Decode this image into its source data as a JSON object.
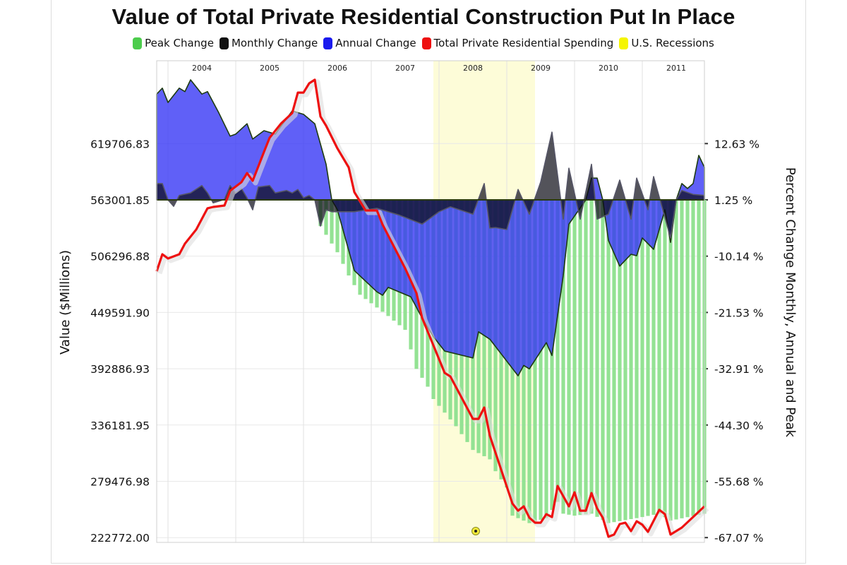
{
  "chart_data": {
    "type": "line",
    "title": "Value of Total Private Residential Construction Put In Place",
    "legend": [
      {
        "name": "Peak Change",
        "color": "#4ccc4c"
      },
      {
        "name": "Monthly Change",
        "color": "#111111"
      },
      {
        "name": "Annual Change",
        "color": "#2222ee"
      },
      {
        "name": "Total Private Residential Spending",
        "color": "#ee1111"
      },
      {
        "name": "U.S. Recessions",
        "color": "#f5f500"
      }
    ],
    "legend_position": "top",
    "ylabel_left": "Value ($Millions)",
    "ylabel_right": "Percent Change Monthly, Annual and Peak",
    "x_range": [
      "2003-11",
      "2011-12"
    ],
    "year_labels": [
      "2004",
      "2005",
      "2006",
      "2007",
      "2008",
      "2009",
      "2010",
      "2011"
    ],
    "left_ticks": [
      "222772.00",
      "279476.98",
      "336181.95",
      "392886.93",
      "449591.90",
      "506296.88",
      "563001.85",
      "619706.83"
    ],
    "right_ticks": [
      "-67.07 %",
      "-55.68 %",
      "-44.30 %",
      "-32.91 %",
      "-21.53 %",
      "-10.14 %",
      "1.25 %",
      "12.63 %"
    ],
    "grid": true,
    "recessions": [
      {
        "start": "2007-12",
        "end": "2009-06"
      }
    ],
    "series": [
      {
        "name": "Total Private Residential Spending",
        "axis": "left",
        "kind": "line",
        "color": "#ee1111",
        "points": [
          [
            "2003-11",
            491100
          ],
          [
            "2003-12",
            508200
          ],
          [
            "2004-01",
            503950
          ],
          [
            "2004-03",
            508200
          ],
          [
            "2004-04",
            518900
          ],
          [
            "2004-06",
            533100
          ],
          [
            "2004-08",
            554500
          ],
          [
            "2004-09",
            555900
          ],
          [
            "2004-11",
            557300
          ],
          [
            "2004-12",
            572200
          ],
          [
            "2005-02",
            580800
          ],
          [
            "2005-03",
            590000
          ],
          [
            "2005-04",
            582200
          ],
          [
            "2005-06",
            611400
          ],
          [
            "2005-07",
            625600
          ],
          [
            "2005-09",
            639800
          ],
          [
            "2005-11",
            650500
          ],
          [
            "2005-12",
            671100
          ],
          [
            "2006-01",
            671100
          ],
          [
            "2006-02",
            680400
          ],
          [
            "2006-03",
            684000
          ],
          [
            "2006-04",
            647000
          ],
          [
            "2006-05",
            637700
          ],
          [
            "2006-07",
            614900
          ],
          [
            "2006-09",
            595700
          ],
          [
            "2006-10",
            570800
          ],
          [
            "2006-12",
            552300
          ],
          [
            "2007-02",
            552300
          ],
          [
            "2007-03",
            538100
          ],
          [
            "2007-07",
            494000
          ],
          [
            "2007-09",
            469100
          ],
          [
            "2007-10",
            444200
          ],
          [
            "2008-02",
            388700
          ],
          [
            "2008-03",
            385100
          ],
          [
            "2008-07",
            342400
          ],
          [
            "2008-08",
            342400
          ],
          [
            "2008-09",
            353800
          ],
          [
            "2008-10",
            325400
          ],
          [
            "2009-02",
            257100
          ],
          [
            "2009-03",
            249900
          ],
          [
            "2009-04",
            254200
          ],
          [
            "2009-05",
            242800
          ],
          [
            "2009-06",
            237800
          ],
          [
            "2009-07",
            237800
          ],
          [
            "2009-08",
            246400
          ],
          [
            "2009-09",
            243500
          ],
          [
            "2009-10",
            274800
          ],
          [
            "2009-12",
            254200
          ],
          [
            "2010-01",
            268400
          ],
          [
            "2010-02",
            249900
          ],
          [
            "2010-03",
            249900
          ],
          [
            "2010-04",
            267700
          ],
          [
            "2010-05",
            252100
          ],
          [
            "2010-06",
            242800
          ],
          [
            "2010-07",
            223600
          ],
          [
            "2010-08",
            225800
          ],
          [
            "2010-09",
            236400
          ],
          [
            "2010-10",
            237800
          ],
          [
            "2010-11",
            229300
          ],
          [
            "2010-12",
            239300
          ],
          [
            "2011-01",
            235700
          ],
          [
            "2011-02",
            228600
          ],
          [
            "2011-04",
            250700
          ],
          [
            "2011-05",
            246400
          ],
          [
            "2011-06",
            225800
          ],
          [
            "2011-08",
            232900
          ],
          [
            "2011-12",
            254200
          ]
        ]
      },
      {
        "name": "Annual Change",
        "axis": "right",
        "kind": "area",
        "color": "#2222ee",
        "points": [
          [
            "2003-11",
            21.4
          ],
          [
            "2003-12",
            22.6
          ],
          [
            "2004-01",
            19.7
          ],
          [
            "2004-03",
            22.6
          ],
          [
            "2004-04",
            21.9
          ],
          [
            "2004-05",
            24.3
          ],
          [
            "2004-07",
            21.4
          ],
          [
            "2004-08",
            21.9
          ],
          [
            "2004-10",
            17.6
          ],
          [
            "2004-12",
            12.9
          ],
          [
            "2005-01",
            13.3
          ],
          [
            "2005-03",
            15.4
          ],
          [
            "2005-04",
            12.3
          ],
          [
            "2005-06",
            14.0
          ],
          [
            "2005-08",
            13.3
          ],
          [
            "2005-11",
            18.0
          ],
          [
            "2006-01",
            17.3
          ],
          [
            "2006-03",
            15.4
          ],
          [
            "2006-05",
            7.2
          ],
          [
            "2006-06",
            0
          ],
          [
            "2006-07",
            -2.0
          ],
          [
            "2006-10",
            -14.3
          ],
          [
            "2007-02",
            -18.6
          ],
          [
            "2007-03",
            -19.3
          ],
          [
            "2007-04",
            -17.7
          ],
          [
            "2007-08",
            -19.6
          ],
          [
            "2007-10",
            -23.9
          ],
          [
            "2007-12",
            -27.7
          ],
          [
            "2008-02",
            -30.6
          ],
          [
            "2008-07",
            -32.0
          ],
          [
            "2008-08",
            -26.7
          ],
          [
            "2008-10",
            -28.2
          ],
          [
            "2009-03",
            -35.6
          ],
          [
            "2009-04",
            -33.5
          ],
          [
            "2009-05",
            -34.2
          ],
          [
            "2009-08",
            -28.9
          ],
          [
            "2009-09",
            -31.5
          ],
          [
            "2009-11",
            -15.3
          ],
          [
            "2009-12",
            -4.9
          ],
          [
            "2010-03",
            0
          ],
          [
            "2010-04",
            4.4
          ],
          [
            "2010-05",
            4.4
          ],
          [
            "2010-06",
            0
          ],
          [
            "2010-07",
            -8.2
          ],
          [
            "2010-09",
            -13.4
          ],
          [
            "2010-11",
            -11.0
          ],
          [
            "2010-12",
            -11.3
          ],
          [
            "2011-01",
            -7.7
          ],
          [
            "2011-03",
            -10.0
          ],
          [
            "2011-05",
            -2.0
          ],
          [
            "2011-06",
            -8.6
          ],
          [
            "2011-07",
            0
          ],
          [
            "2011-08",
            3.3
          ],
          [
            "2011-09",
            2.3
          ],
          [
            "2011-10",
            3.3
          ],
          [
            "2011-11",
            9.0
          ],
          [
            "2011-12",
            6.6
          ]
        ]
      },
      {
        "name": "Monthly Change",
        "axis": "right",
        "kind": "area",
        "color": "#111111",
        "points": [
          [
            "2003-11",
            3.3
          ],
          [
            "2003-12",
            3.3
          ],
          [
            "2004-01",
            0
          ],
          [
            "2004-02",
            -1.3
          ],
          [
            "2004-03",
            0.9
          ],
          [
            "2004-05",
            1.4
          ],
          [
            "2004-07",
            2.9
          ],
          [
            "2004-08",
            1.4
          ],
          [
            "2004-09",
            -0.6
          ],
          [
            "2004-11",
            0.1
          ],
          [
            "2004-12",
            2.9
          ],
          [
            "2005-01",
            1.4
          ],
          [
            "2005-02",
            2.3
          ],
          [
            "2005-03",
            0.4
          ],
          [
            "2005-04",
            -2.0
          ],
          [
            "2005-05",
            2.6
          ],
          [
            "2005-07",
            2.9
          ],
          [
            "2005-08",
            1.4
          ],
          [
            "2005-10",
            1.9
          ],
          [
            "2005-11",
            1.4
          ],
          [
            "2005-12",
            2.1
          ],
          [
            "2006-01",
            0.4
          ],
          [
            "2006-02",
            0.9
          ],
          [
            "2006-03",
            0
          ],
          [
            "2006-04",
            -5.3
          ],
          [
            "2006-05",
            -2.0
          ],
          [
            "2006-06",
            -2.4
          ],
          [
            "2006-10",
            -2.4
          ],
          [
            "2007-02",
            -1.7
          ],
          [
            "2007-06",
            -3.1
          ],
          [
            "2007-10",
            -4.9
          ],
          [
            "2008-01",
            -2.4
          ],
          [
            "2008-03",
            -1.4
          ],
          [
            "2008-07",
            -2.9
          ],
          [
            "2008-09",
            3.3
          ],
          [
            "2008-10",
            -5.7
          ],
          [
            "2008-11",
            -5.6
          ],
          [
            "2009-01",
            -6.0
          ],
          [
            "2009-03",
            2.1
          ],
          [
            "2009-05",
            -2.9
          ],
          [
            "2009-07",
            3.6
          ],
          [
            "2009-09",
            13.7
          ],
          [
            "2009-11",
            -3.9
          ],
          [
            "2009-12",
            6.4
          ],
          [
            "2010-02",
            -3.9
          ],
          [
            "2010-04",
            7.2
          ],
          [
            "2010-05",
            -3.9
          ],
          [
            "2010-07",
            -2.9
          ],
          [
            "2010-09",
            4.0
          ],
          [
            "2010-11",
            -3.9
          ],
          [
            "2010-12",
            4.4
          ],
          [
            "2011-02",
            -2.0
          ],
          [
            "2011-03",
            4.7
          ],
          [
            "2011-06",
            -7.7
          ],
          [
            "2011-07",
            0
          ],
          [
            "2011-08",
            1.9
          ],
          [
            "2011-10",
            1.1
          ],
          [
            "2011-12",
            0.9
          ]
        ]
      },
      {
        "name": "Peak Change",
        "axis": "right",
        "kind": "bar",
        "color": "#8fe08f",
        "points": [
          [
            "2006-03",
            0
          ],
          [
            "2006-04",
            -5.3
          ],
          [
            "2006-07",
            -10.6
          ],
          [
            "2006-09",
            -15.3
          ],
          [
            "2006-11",
            -19.2
          ],
          [
            "2007-04",
            -23.5
          ],
          [
            "2007-07",
            -26.3
          ],
          [
            "2007-09",
            -34.2
          ],
          [
            "2007-11",
            -37.8
          ],
          [
            "2007-12",
            -40.3
          ],
          [
            "2008-04",
            -45.8
          ],
          [
            "2008-07",
            -50.6
          ],
          [
            "2008-10",
            -52.5
          ],
          [
            "2008-11",
            -54.9
          ],
          [
            "2009-01",
            -58.2
          ],
          [
            "2009-02",
            -63.9
          ],
          [
            "2009-05",
            -65.4
          ],
          [
            "2009-08",
            -64.4
          ],
          [
            "2009-10",
            -61.1
          ],
          [
            "2009-11",
            -63.5
          ],
          [
            "2010-01",
            -63.9
          ],
          [
            "2010-04",
            -63.5
          ],
          [
            "2010-07",
            -65.4
          ],
          [
            "2010-12",
            -64.4
          ],
          [
            "2011-04",
            -63.5
          ],
          [
            "2011-06",
            -64.9
          ],
          [
            "2011-12",
            -63.5
          ]
        ]
      }
    ],
    "event_marker": {
      "date": "2008-08",
      "icon": "event-marker-icon"
    }
  }
}
